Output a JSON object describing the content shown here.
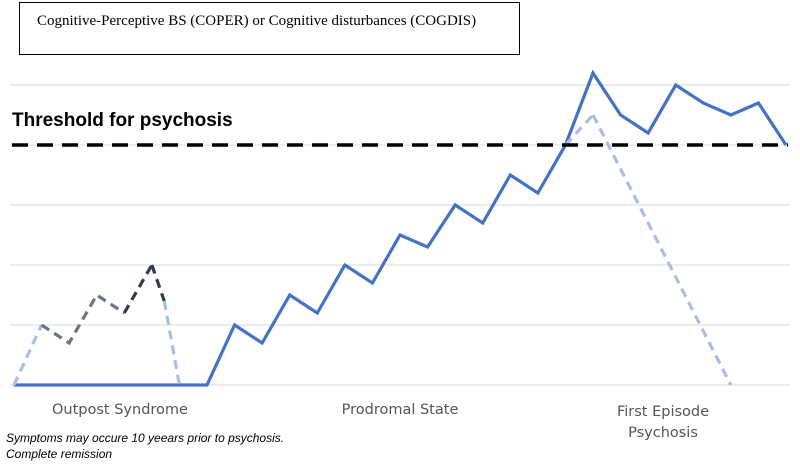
{
  "legend_box": {
    "text": "Cognitive-Perceptive BS (COPER) or Cognitive disturbances (COGDIS)"
  },
  "threshold": {
    "label": "Threshold for psychosis"
  },
  "phases": [
    {
      "label": "Outpost Syndrome"
    },
    {
      "label": "Prodromal State"
    },
    {
      "label": "First Episode Psychosis"
    }
  ],
  "note": {
    "text": "Symptoms may occure 10 yeears prior to psychosis. Complete remission"
  },
  "colors": {
    "main_line": "#4472C4",
    "dark_dashed": "#333b4a",
    "mid_dashed": "#6b7485",
    "light_dashed": "#a9bfe3",
    "threshold": "#000000",
    "grid": "#d9d9d9"
  },
  "chart_data": {
    "type": "line",
    "ylim": [
      0,
      5.3
    ],
    "xlim": [
      0,
      28
    ],
    "gridlines_y": [
      0,
      1,
      2,
      3,
      4,
      5
    ],
    "threshold_y": 4,
    "series": [
      {
        "style": "solid",
        "color_key": "main_line",
        "x": [
          0,
          7,
          8,
          9,
          10,
          11,
          12,
          13,
          14,
          15,
          16,
          17,
          18,
          19,
          20,
          21,
          22,
          23,
          24,
          25,
          26,
          27,
          28
        ],
        "y": [
          0,
          0,
          1,
          0.7,
          1.5,
          1.2,
          2,
          1.7,
          2.5,
          2.3,
          3,
          2.7,
          3.5,
          3.2,
          4,
          5.2,
          4.5,
          4.2,
          5,
          4.7,
          4.5,
          4.7,
          4
        ]
      },
      {
        "style": "dashed",
        "color_key": "light_dashed",
        "x": [
          0,
          1
        ],
        "y": [
          0,
          1
        ]
      },
      {
        "style": "dashed",
        "color_key": "mid_dashed",
        "x": [
          1,
          2,
          3,
          4
        ],
        "y": [
          1,
          0.7,
          1.5,
          1.2
        ]
      },
      {
        "style": "dashed",
        "color_key": "dark_dashed",
        "x": [
          4,
          5
        ],
        "y": [
          1.2,
          2
        ]
      },
      {
        "style": "dashed",
        "color_key": "dark_dashed",
        "x": [
          5,
          5.45
        ],
        "y": [
          2,
          1.4
        ]
      },
      {
        "style": "dashed",
        "color_key": "light_dashed",
        "x": [
          5.45,
          6
        ],
        "y": [
          1.4,
          0
        ]
      },
      {
        "style": "dashed",
        "color_key": "light_dashed",
        "x": [
          20,
          21
        ],
        "y": [
          4,
          4.5
        ]
      },
      {
        "style": "dashed",
        "color_key": "light_dashed",
        "x": [
          21,
          26
        ],
        "y": [
          4.5,
          0
        ]
      }
    ]
  }
}
